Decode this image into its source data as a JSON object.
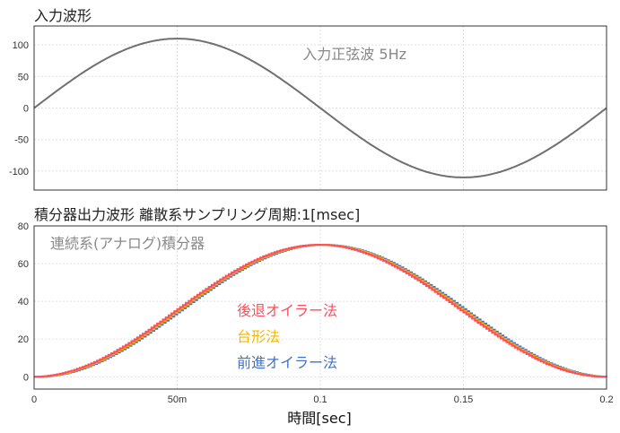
{
  "chart_data": [
    {
      "type": "line",
      "title": "入力波形",
      "annotation": "入力正弦波 5Hz",
      "xlim": [
        0,
        0.2
      ],
      "ylim": [
        -130,
        130
      ],
      "yticks": [
        "100",
        "50",
        "0",
        "-50",
        "-100"
      ],
      "ytick_values": [
        100,
        50,
        0,
        -50,
        -100
      ],
      "xgrid": [
        0.05,
        0.1,
        0.15
      ],
      "grid": true,
      "series": [
        {
          "name": "入力正弦波 5Hz",
          "color": "#707070",
          "function": "110*sin(2π·5·t)",
          "amplitude": 110,
          "frequency_hz": 5
        }
      ]
    },
    {
      "type": "line",
      "title": "積分器出力波形  離散系サンプリング周期:1[msec]",
      "annotation": "連続系(アナログ)積分器",
      "xlabel": "時間[sec]",
      "xlim": [
        0,
        0.2
      ],
      "ylim": [
        -6.5,
        80
      ],
      "yticks": [
        "80",
        "60",
        "40",
        "20",
        "0"
      ],
      "ytick_values": [
        80,
        60,
        40,
        20,
        0
      ],
      "xticks": [
        "0",
        "50m",
        "0.1",
        "0.15",
        "0.2"
      ],
      "xtick_values": [
        0,
        0.05,
        0.1,
        0.15,
        0.2
      ],
      "grid": true,
      "peak": 70,
      "series": [
        {
          "name": "前進オイラー法",
          "color": "#4472c4"
        },
        {
          "name": "台形法",
          "color": "#f5b800"
        },
        {
          "name": "後退オイラー法",
          "color": "#ff4d5a"
        }
      ]
    }
  ]
}
